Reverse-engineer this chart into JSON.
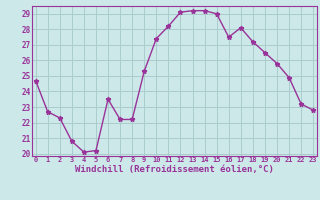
{
  "x": [
    0,
    1,
    2,
    3,
    4,
    5,
    6,
    7,
    8,
    9,
    10,
    11,
    12,
    13,
    14,
    15,
    16,
    17,
    18,
    19,
    20,
    21,
    22,
    23
  ],
  "y": [
    24.7,
    22.7,
    22.3,
    20.8,
    20.1,
    20.2,
    23.5,
    22.2,
    22.2,
    25.3,
    27.4,
    28.2,
    29.1,
    29.2,
    29.2,
    29.0,
    27.5,
    28.1,
    27.2,
    26.5,
    25.8,
    24.9,
    23.2,
    22.8
  ],
  "line_color": "#993399",
  "marker": "*",
  "marker_size": 3.5,
  "bg_color": "#cce8e8",
  "grid_color": "#aacccc",
  "xlabel": "Windchill (Refroidissement éolien,°C)",
  "xlabel_color": "#993399",
  "tick_color": "#993399",
  "axes_color": "#993399",
  "ylim_min": 20,
  "ylim_max": 29,
  "xlim_min": 0,
  "xlim_max": 23,
  "yticks": [
    20,
    21,
    22,
    23,
    24,
    25,
    26,
    27,
    28,
    29
  ],
  "xticks": [
    0,
    1,
    2,
    3,
    4,
    5,
    6,
    7,
    8,
    9,
    10,
    11,
    12,
    13,
    14,
    15,
    16,
    17,
    18,
    19,
    20,
    21,
    22,
    23
  ]
}
